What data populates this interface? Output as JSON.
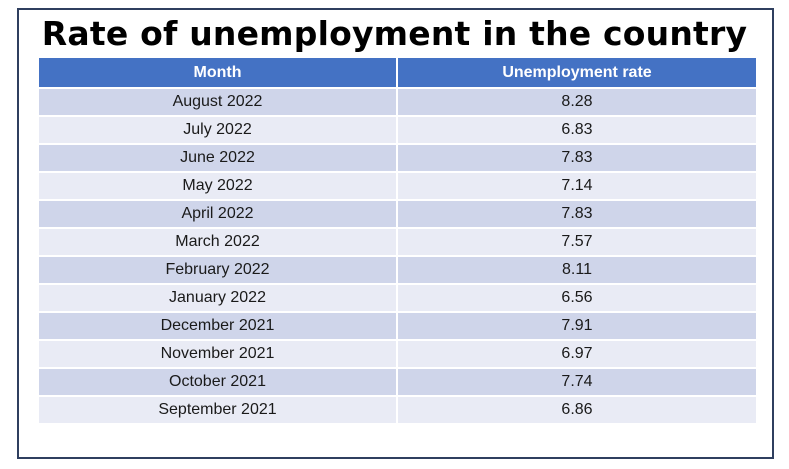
{
  "title": "Rate of unemployment in the country",
  "colors": {
    "header_bg": "#4472c4",
    "row_dark": "#cfd5ea",
    "row_light": "#e9ebf5",
    "frame_border": "#2f3f5f"
  },
  "chart_data": {
    "type": "table",
    "title": "Rate of unemployment in the country",
    "columns": [
      "Month",
      "Unemployment rate"
    ],
    "rows": [
      [
        "August 2022",
        "8.28"
      ],
      [
        "July 2022",
        "6.83"
      ],
      [
        "June 2022",
        "7.83"
      ],
      [
        "May 2022",
        "7.14"
      ],
      [
        "April 2022",
        "7.83"
      ],
      [
        "March 2022",
        "7.57"
      ],
      [
        "February 2022",
        "8.11"
      ],
      [
        "January 2022",
        "6.56"
      ],
      [
        "December 2021",
        "7.91"
      ],
      [
        "November 2021",
        "6.97"
      ],
      [
        "October 2021",
        "7.74"
      ],
      [
        "September 2021",
        "6.86"
      ]
    ]
  }
}
